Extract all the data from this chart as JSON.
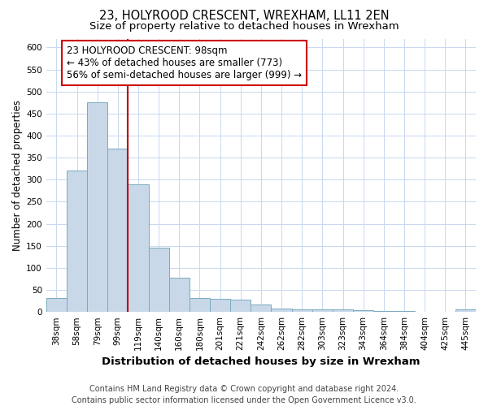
{
  "title": "23, HOLYROOD CRESCENT, WREXHAM, LL11 2EN",
  "subtitle": "Size of property relative to detached houses in Wrexham",
  "xlabel": "Distribution of detached houses by size in Wrexham",
  "ylabel": "Number of detached properties",
  "categories": [
    "38sqm",
    "58sqm",
    "79sqm",
    "99sqm",
    "119sqm",
    "140sqm",
    "160sqm",
    "180sqm",
    "201sqm",
    "221sqm",
    "242sqm",
    "262sqm",
    "282sqm",
    "303sqm",
    "323sqm",
    "343sqm",
    "364sqm",
    "384sqm",
    "404sqm",
    "425sqm",
    "445sqm"
  ],
  "values": [
    31,
    320,
    475,
    370,
    290,
    145,
    77,
    31,
    29,
    28,
    17,
    8,
    6,
    5,
    6,
    4,
    3,
    2,
    1,
    1,
    5
  ],
  "bar_color": "#c8d8e8",
  "bar_edge_color": "#7aaabf",
  "grid_color": "#c8d8ef",
  "property_line_x": 3.5,
  "property_line_color": "#bb0000",
  "annotation_text": "23 HOLYROOD CRESCENT: 98sqm\n← 43% of detached houses are smaller (773)\n56% of semi-detached houses are larger (999) →",
  "annotation_box_color": "#cc0000",
  "ylim": [
    0,
    620
  ],
  "yticks": [
    0,
    50,
    100,
    150,
    200,
    250,
    300,
    350,
    400,
    450,
    500,
    550,
    600
  ],
  "footer": "Contains HM Land Registry data © Crown copyright and database right 2024.\nContains public sector information licensed under the Open Government Licence v3.0.",
  "title_fontsize": 10.5,
  "subtitle_fontsize": 9.5,
  "xlabel_fontsize": 9.5,
  "ylabel_fontsize": 8.5,
  "tick_fontsize": 7.5,
  "annotation_fontsize": 8.5,
  "footer_fontsize": 7,
  "background_color": "#ffffff"
}
